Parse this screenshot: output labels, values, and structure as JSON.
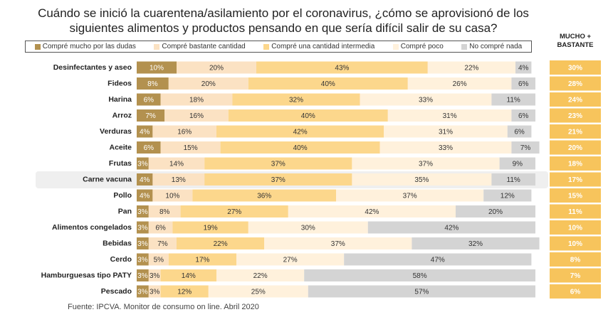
{
  "chart_data": {
    "type": "stacked-bar-horizontal",
    "title": "Cuándo se inició la cuarentena/asilamiento por el coronavirus, ¿cómo se aprovisionó de los siguientes alimentos y productos pensando en que sería difícil salir de su casa?",
    "source": "Fuente: IPCVA. Monitor de consumo on line. Abril 2020",
    "xlim": [
      0,
      100
    ],
    "categories": [
      "Desinfectantes y aseo",
      "Fideos",
      "Harina",
      "Arroz",
      "Verduras",
      "Aceite",
      "Frutas",
      "Carne vacuna",
      "Pollo",
      "Pan",
      "Alimentos congelados",
      "Bebidas",
      "Cerdo",
      "Hamburguesas tipo PATY",
      "Pescado"
    ],
    "series": [
      {
        "name": "Compré mucho por las dudas",
        "color": "#b3914f",
        "values": [
          10,
          8,
          6,
          7,
          4,
          6,
          3,
          4,
          4,
          3,
          3,
          3,
          3,
          3,
          3
        ],
        "value_labels": [
          "10%",
          "8%",
          "6%",
          "7%",
          "4%",
          "6%",
          "3%",
          "4%",
          "4%",
          "3%",
          "3%",
          "3%",
          "3%",
          "3%",
          "3%"
        ]
      },
      {
        "name": "Compré bastante cantidad",
        "color": "#fbe2c3",
        "values": [
          20,
          20,
          18,
          16,
          16,
          15,
          14,
          13,
          10,
          8,
          6,
          7,
          5,
          3,
          3
        ],
        "value_labels": [
          "20%",
          "20%",
          "18%",
          "16%",
          "16%",
          "15%",
          "14%",
          "13%",
          "10%",
          "8%",
          "6%",
          "7%",
          "5%",
          "3%",
          "3%"
        ]
      },
      {
        "name": "Compré una cantidad intermedia",
        "color": "#fcd78c",
        "values": [
          43,
          40,
          32,
          40,
          42,
          40,
          37,
          37,
          36,
          27,
          19,
          22,
          17,
          14,
          12
        ],
        "value_labels": [
          "43%",
          "40%",
          "32%",
          "40%",
          "42%",
          "40%",
          "37%",
          "37%",
          "36%",
          "27%",
          "19%",
          "22%",
          "17%",
          "14%",
          "12%"
        ]
      },
      {
        "name": "Compré poco",
        "color": "#fff1dc",
        "values": [
          22,
          26,
          33,
          31,
          31,
          33,
          37,
          35,
          37,
          42,
          30,
          37,
          27,
          22,
          25
        ],
        "value_labels": [
          "22%",
          "26%",
          "33%",
          "31%",
          "31%",
          "33%",
          "37%",
          "35%",
          "37%",
          "42%",
          "30%",
          "37%",
          "27%",
          "22%",
          "25%"
        ]
      },
      {
        "name": "No compré nada",
        "color": "#d4d4d4",
        "values": [
          4,
          6,
          11,
          6,
          6,
          7,
          9,
          11,
          12,
          20,
          42,
          32,
          47,
          58,
          57
        ],
        "value_labels": [
          "4%",
          "6%",
          "11%",
          "6%",
          "6%",
          "7%",
          "9%",
          "11%",
          "12%",
          "20%",
          "42%",
          "32%",
          "47%",
          "58%",
          "57%"
        ]
      }
    ],
    "total_column": {
      "title": "MUCHO + BASTANTE",
      "color": "#f7c45c",
      "values": [
        30,
        28,
        24,
        23,
        21,
        20,
        18,
        17,
        15,
        11,
        10,
        10,
        8,
        7,
        6
      ],
      "value_labels": [
        "30%",
        "28%",
        "24%",
        "23%",
        "21%",
        "20%",
        "18%",
        "17%",
        "15%",
        "11%",
        "10%",
        "10%",
        "8%",
        "7%",
        "6%"
      ]
    }
  }
}
